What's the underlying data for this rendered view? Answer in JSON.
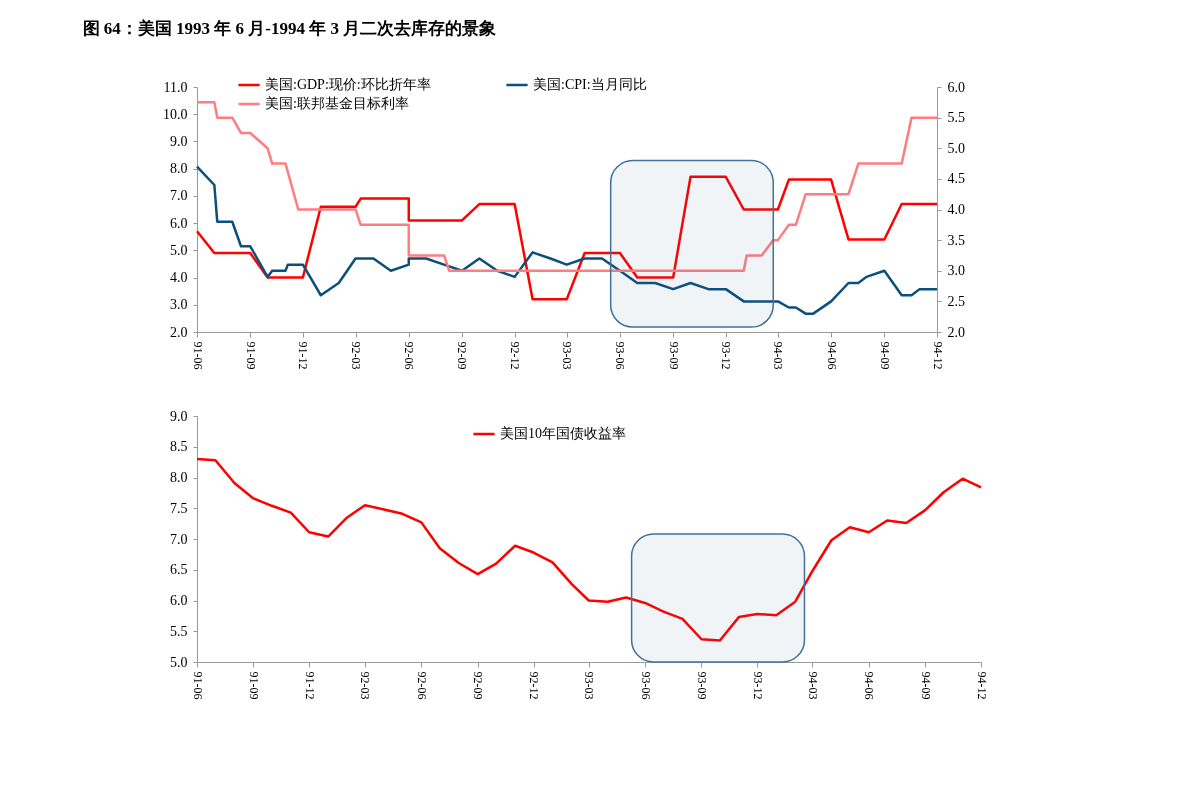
{
  "chart_data": [
    {
      "type": "line",
      "title": "图 64：美国 1993 年 6 月-1994 年 3 月二次去库存的景象",
      "xlim": [
        "1991-06",
        "1994-12"
      ],
      "xticks": [
        {
          "value": "1991-06",
          "label": "91-06"
        },
        {
          "value": "1991-09",
          "label": "91-09"
        },
        {
          "value": "1991-12",
          "label": "91-12"
        },
        {
          "value": "1992-03",
          "label": "92-03"
        },
        {
          "value": "1992-06",
          "label": "92-06"
        },
        {
          "value": "1992-09",
          "label": "92-09"
        },
        {
          "value": "1992-12",
          "label": "92-12"
        },
        {
          "value": "1993-03",
          "label": "93-03"
        },
        {
          "value": "1993-06",
          "label": "93-06"
        },
        {
          "value": "1993-09",
          "label": "93-09"
        },
        {
          "value": "1993-12",
          "label": "93-12"
        },
        {
          "value": "1994-03",
          "label": "94-03"
        },
        {
          "value": "1994-06",
          "label": "94-06"
        },
        {
          "value": "1994-09",
          "label": "94-09"
        },
        {
          "value": "1994-12",
          "label": "94-12"
        }
      ],
      "ylim": [
        2,
        11
      ],
      "yticks": [
        {
          "value": 2,
          "label": "2.0"
        },
        {
          "value": 3,
          "label": "3.0"
        },
        {
          "value": 4,
          "label": "4.0"
        },
        {
          "value": 5,
          "label": "5.0"
        },
        {
          "value": 6,
          "label": "6.0"
        },
        {
          "value": 7,
          "label": "7.0"
        },
        {
          "value": 8,
          "label": "8.0"
        },
        {
          "value": 9,
          "label": "9.0"
        },
        {
          "value": 10,
          "label": "10.0"
        },
        {
          "value": 11,
          "label": "11.0"
        }
      ],
      "y2lim": [
        2,
        6
      ],
      "y2ticks": [
        {
          "value": 2,
          "label": "2.0"
        },
        2.5,
        {
          "value": 3,
          "label": "3.0"
        },
        3.5,
        {
          "value": 4,
          "label": "4.0"
        },
        4.5,
        {
          "value": 5,
          "label": "5.0"
        },
        5.5,
        {
          "value": 6,
          "label": "6.0"
        }
      ],
      "legend": "top",
      "grid": false,
      "bands": [
        {
          "axis": "x",
          "from": "1993-05-16",
          "to": "1994-02-21",
          "color": "#41719c"
        }
      ],
      "series": [
        {
          "name": "美国:GDP:现价:环比折年率",
          "color": "#ff0000",
          "x": [
            "1991-06",
            "1991-07",
            "1991-09",
            "1991-10",
            "1991-12",
            "1992-01",
            "1992-03",
            "1992-03-10",
            "1992-06",
            "1992-06",
            "1992-09",
            "1992-10",
            "1992-12",
            "1993-01",
            "1993-03",
            "1993-04",
            "1993-06",
            "1993-07",
            "1993-09",
            "1993-10",
            "1993-12",
            "1994-01",
            "1994-03",
            "1994-03-20",
            "1994-06",
            "1994-07",
            "1994-09",
            "1994-10",
            "1994-12"
          ],
          "values": [
            5.7,
            4.9,
            4.9,
            4.0,
            4.0,
            6.6,
            6.6,
            6.9,
            6.9,
            6.1,
            6.1,
            6.7,
            6.7,
            3.2,
            3.2,
            4.9,
            4.9,
            4.0,
            4.0,
            7.7,
            7.7,
            6.5,
            6.5,
            7.6,
            7.6,
            5.4,
            5.4,
            6.7,
            6.7
          ]
        },
        {
          "name": "美国:CPI:当月同比",
          "color": "#0b4f7c",
          "axis": "y2",
          "x": [
            "1991-06",
            "1991-07",
            "1991-07-06",
            "1991-08",
            "1991-08-16",
            "1991-09",
            "1991-10",
            "1991-10-09",
            "1991-11",
            "1991-11-05",
            "1991-12",
            "1992-01",
            "1992-02",
            "1992-03",
            "1992-04",
            "1992-05",
            "1992-06",
            "1992-06",
            "1992-07",
            "1992-08",
            "1992-09",
            "1992-10",
            "1992-11",
            "1992-12",
            "1993-01",
            "1993-02",
            "1993-03",
            "1993-04",
            "1993-05",
            "1993-06",
            "1993-07",
            "1993-08",
            "1993-09",
            "1993-10",
            "1993-11",
            "1993-12",
            "1994-01",
            "1994-02",
            "1994-03",
            "1994-03-20",
            "1994-04",
            "1994-04-18",
            "1994-05",
            "1994-06",
            "1994-07",
            "1994-07-18",
            "1994-08",
            "1994-09",
            "1994-10",
            "1994-10-18",
            "1994-11",
            "1994-12"
          ],
          "values": [
            4.7,
            4.4,
            3.8,
            3.8,
            3.4,
            3.4,
            2.9,
            3.0,
            3.0,
            3.1,
            3.1,
            2.6,
            2.8,
            3.2,
            3.2,
            3.0,
            3.1,
            3.2,
            3.2,
            3.1,
            3.0,
            3.2,
            3.0,
            2.9,
            3.3,
            3.2,
            3.1,
            3.2,
            3.2,
            3.0,
            2.8,
            2.8,
            2.7,
            2.8,
            2.7,
            2.7,
            2.5,
            2.5,
            2.5,
            2.4,
            2.4,
            2.3,
            2.3,
            2.5,
            2.8,
            2.8,
            2.9,
            3.0,
            2.6,
            2.6,
            2.7,
            2.7
          ]
        },
        {
          "name": "美国:联邦基金目标利率",
          "color": "#ff7c80",
          "axis": "y2",
          "x": [
            "1991-06",
            "1991-07",
            "1991-07-06",
            "1991-08",
            "1991-08-16",
            "1991-09",
            "1991-10",
            "1991-10-09",
            "1991-11",
            "1991-11-23",
            "1992-03",
            "1992-03-10",
            "1992-06",
            "1992-06",
            "1992-08",
            "1992-08-10",
            "1994-01",
            "1994-01-06",
            "1994-02",
            "1994-02-21",
            "1994-03",
            "1994-03-20",
            "1994-04",
            "1994-04-18",
            "1994-07",
            "1994-07-18",
            "1994-10",
            "1994-10-18",
            "1994-12"
          ],
          "values": [
            5.75,
            5.75,
            5.5,
            5.5,
            5.25,
            5.25,
            5.0,
            4.75,
            4.75,
            4.0,
            4.0,
            3.75,
            3.75,
            3.25,
            3.25,
            3.0,
            3.0,
            3.25,
            3.25,
            3.5,
            3.5,
            3.75,
            3.75,
            4.25,
            4.25,
            4.75,
            4.75,
            5.5,
            5.5
          ]
        }
      ]
    },
    {
      "type": "line",
      "xlim": [
        "1991-06",
        "1994-12"
      ],
      "xticks": [
        {
          "value": "1991-06",
          "label": "91-06"
        },
        {
          "value": "1991-09",
          "label": "91-09"
        },
        {
          "value": "1991-12",
          "label": "91-12"
        },
        {
          "value": "1992-03",
          "label": "92-03"
        },
        {
          "value": "1992-06",
          "label": "92-06"
        },
        {
          "value": "1992-09",
          "label": "92-09"
        },
        {
          "value": "1992-12",
          "label": "92-12"
        },
        {
          "value": "1993-03",
          "label": "93-03"
        },
        {
          "value": "1993-06",
          "label": "93-06"
        },
        {
          "value": "1993-09",
          "label": "93-09"
        },
        {
          "value": "1993-12",
          "label": "93-12"
        },
        {
          "value": "1994-03",
          "label": "94-03"
        },
        {
          "value": "1994-06",
          "label": "94-06"
        },
        {
          "value": "1994-09",
          "label": "94-09"
        },
        {
          "value": "1994-12",
          "label": "94-12"
        }
      ],
      "ylim": [
        5,
        9
      ],
      "yticks": [
        {
          "value": 5,
          "label": "5.0"
        },
        5.5,
        {
          "value": 6,
          "label": "6.0"
        },
        6.5,
        {
          "value": 7,
          "label": "7.0"
        },
        7.5,
        {
          "value": 8,
          "label": "8.0"
        },
        8.5,
        {
          "value": 9,
          "label": "9.0"
        }
      ],
      "legend": "top",
      "grid": false,
      "bands": [
        {
          "axis": "x",
          "from": "1993-05-10",
          "to": "1994-02-16",
          "color": "#41719c"
        }
      ],
      "x": [
        "1991-06",
        "1991-07",
        "1991-08",
        "1991-09",
        "1991-10",
        "1991-11",
        "1991-12",
        "1992-01",
        "1992-02",
        "1992-03",
        "1992-04",
        "1992-05",
        "1992-06",
        "1992-07",
        "1992-08",
        "1992-09",
        "1992-10",
        "1992-11",
        "1992-12",
        "1993-01",
        "1993-02",
        "1993-03",
        "1993-04",
        "1993-05",
        "1993-06",
        "1993-07",
        "1993-08",
        "1993-09",
        "1993-10",
        "1993-11",
        "1993-12",
        "1994-01",
        "1994-02",
        "1994-03",
        "1994-04",
        "1994-05",
        "1994-06",
        "1994-07",
        "1994-08",
        "1994-09",
        "1994-10",
        "1994-11",
        "1994-12"
      ],
      "series": [
        {
          "name": "美国10年国债收益率",
          "color": "#ff0000",
          "values": [
            8.3,
            8.28,
            7.91,
            7.66,
            7.54,
            7.43,
            7.11,
            7.04,
            7.35,
            7.55,
            7.48,
            7.41,
            7.27,
            6.85,
            6.61,
            6.43,
            6.6,
            6.89,
            6.78,
            6.62,
            6.27,
            6.0,
            5.98,
            6.05,
            5.96,
            5.82,
            5.7,
            5.37,
            5.35,
            5.73,
            5.78,
            5.76,
            5.98,
            6.48,
            6.98,
            7.19,
            7.11,
            7.3,
            7.26,
            7.47,
            7.76,
            7.98,
            7.84
          ]
        }
      ]
    }
  ]
}
